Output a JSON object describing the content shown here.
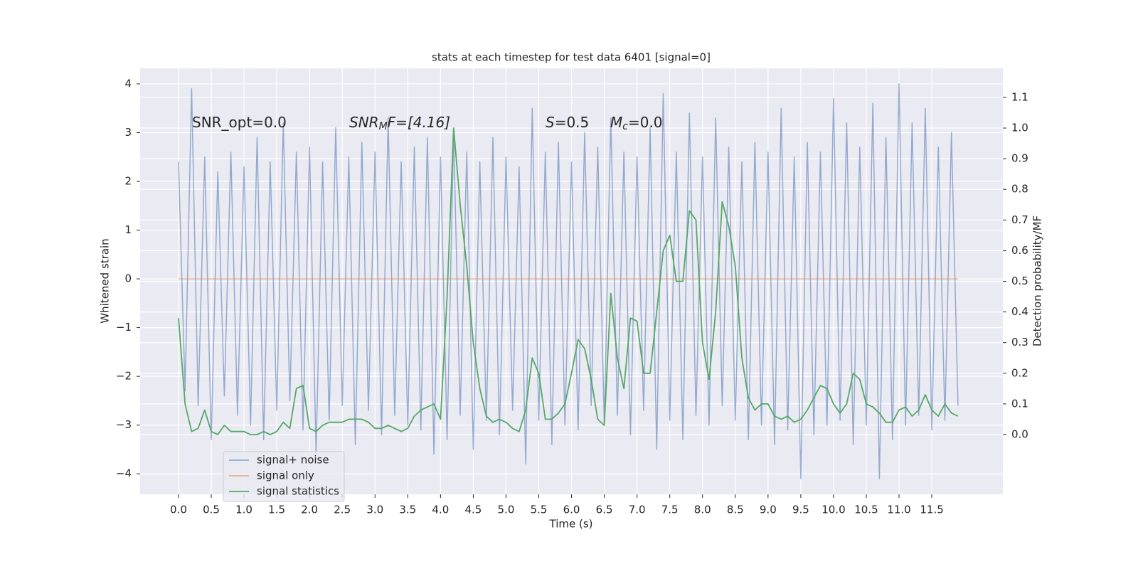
{
  "chart_data": {
    "type": "line",
    "title": "stats at each timestep for test data 6401 [signal=0]",
    "xlabel": "Time (s)",
    "ylabel": "Whitened strain",
    "y2label": "Detection probability/MF",
    "annotations": [
      [
        "SNR_opt=0.0"
      ],
      [
        "SNR",
        "M",
        "F=[4.16]"
      ],
      [
        "S",
        "=0.5"
      ],
      [
        "M",
        "c",
        "=0.0"
      ]
    ],
    "x": [
      0,
      0.1,
      0.2,
      0.3,
      0.4,
      0.5,
      0.6,
      0.7,
      0.8,
      0.9,
      1,
      1.1,
      1.2,
      1.3,
      1.4,
      1.5,
      1.6,
      1.7,
      1.8,
      1.9,
      2,
      2.1,
      2.2,
      2.3,
      2.4,
      2.5,
      2.6,
      2.7,
      2.8,
      2.9,
      3,
      3.1,
      3.2,
      3.3,
      3.4,
      3.5,
      3.6,
      3.7,
      3.8,
      3.9,
      4,
      4.1,
      4.2,
      4.3,
      4.4,
      4.5,
      4.6,
      4.7,
      4.8,
      4.9,
      5,
      5.1,
      5.2,
      5.3,
      5.4,
      5.5,
      5.6,
      5.7,
      5.8,
      5.9,
      6,
      6.1,
      6.2,
      6.3,
      6.4,
      6.5,
      6.6,
      6.7,
      6.8,
      6.9,
      7,
      7.1,
      7.2,
      7.3,
      7.4,
      7.5,
      7.6,
      7.7,
      7.8,
      7.9,
      8,
      8.1,
      8.2,
      8.3,
      8.4,
      8.5,
      8.6,
      8.7,
      8.8,
      8.9,
      9,
      9.1,
      9.2,
      9.3,
      9.4,
      9.5,
      9.6,
      9.7,
      9.8,
      9.9,
      10,
      10.1,
      10.2,
      10.3,
      10.4,
      10.5,
      10.6,
      10.7,
      10.8,
      10.9,
      11,
      11.1,
      11.2,
      11.3,
      11.4,
      11.5,
      11.6,
      11.7,
      11.8,
      11.9
    ],
    "series": [
      {
        "name": "signal+ noise",
        "color": "#4c72b0",
        "values": [
          2.4,
          -2.3,
          3.9,
          -2.6,
          2.5,
          -3.3,
          2.2,
          -2.4,
          2.6,
          -2.8,
          2.3,
          -3.0,
          2.9,
          -3.3,
          2.4,
          -2.7,
          3.2,
          -2.5,
          2.6,
          -3.1,
          2.7,
          -3.6,
          2.4,
          -2.9,
          3.1,
          -2.6,
          2.5,
          -3.4,
          2.8,
          -2.7,
          2.6,
          -3.2,
          3.3,
          -2.8,
          2.4,
          -3.0,
          2.7,
          -3.1,
          2.9,
          -3.6,
          2.5,
          -3.3,
          3.0,
          -2.8,
          2.6,
          -3.5,
          2.4,
          -2.9,
          2.9,
          -3.2,
          2.5,
          -2.7,
          2.3,
          -3.8,
          3.5,
          -2.9,
          2.6,
          -3.4,
          2.8,
          -3.0,
          2.4,
          -3.1,
          3.0,
          -2.6,
          2.7,
          -3.0,
          3.3,
          -2.8,
          2.6,
          -3.2,
          2.5,
          -2.7,
          3.1,
          -3.5,
          3.8,
          -2.9,
          2.6,
          -3.3,
          3.4,
          -2.8,
          2.5,
          -3.0,
          3.3,
          -2.6,
          2.7,
          -2.9,
          2.4,
          -3.3,
          2.8,
          -3.0,
          2.6,
          -3.4,
          3.5,
          -3.1,
          2.5,
          -4.1,
          2.8,
          -3.2,
          2.6,
          -3.0,
          3.7,
          -2.9,
          3.2,
          -3.4,
          2.7,
          -3.0,
          3.6,
          -4.1,
          2.9,
          -3.3,
          4.0,
          -3.0,
          3.2,
          -2.8,
          3.5,
          -3.1,
          2.7,
          -2.9,
          3.0,
          -2.6
        ]
      },
      {
        "name": "signal only",
        "color": "#dd8452",
        "values": [
          0,
          0,
          0,
          0,
          0,
          0,
          0,
          0,
          0,
          0,
          0,
          0,
          0,
          0,
          0,
          0,
          0,
          0,
          0,
          0,
          0,
          0,
          0,
          0,
          0,
          0,
          0,
          0,
          0,
          0,
          0,
          0,
          0,
          0,
          0,
          0,
          0,
          0,
          0,
          0,
          0,
          0,
          0,
          0,
          0,
          0,
          0,
          0,
          0,
          0,
          0,
          0,
          0,
          0,
          0,
          0,
          0,
          0,
          0,
          0,
          0,
          0,
          0,
          0,
          0,
          0,
          0,
          0,
          0,
          0,
          0,
          0,
          0,
          0,
          0,
          0,
          0,
          0,
          0,
          0,
          0,
          0,
          0,
          0,
          0,
          0,
          0,
          0,
          0,
          0,
          0,
          0,
          0,
          0,
          0,
          0,
          0,
          0,
          0,
          0,
          0,
          0,
          0,
          0,
          0,
          0,
          0,
          0,
          0,
          0,
          0,
          0,
          0,
          0,
          0,
          0,
          0,
          0,
          0,
          0
        ]
      },
      {
        "name": "signal statistics",
        "color": "#55a868",
        "axis": "y2",
        "values": [
          0.38,
          0.1,
          0.01,
          0.02,
          0.08,
          0.01,
          0,
          0.03,
          0.01,
          0.01,
          0.01,
          0,
          0,
          0.01,
          0,
          0.01,
          0.04,
          0.02,
          0.15,
          0.16,
          0.02,
          0.01,
          0.03,
          0.04,
          0.04,
          0.04,
          0.05,
          0.05,
          0.05,
          0.04,
          0.02,
          0.02,
          0.03,
          0.02,
          0.01,
          0.02,
          0.06,
          0.08,
          0.09,
          0.1,
          0.05,
          0.45,
          1.0,
          0.75,
          0.55,
          0.3,
          0.15,
          0.06,
          0.04,
          0.05,
          0.04,
          0.02,
          0.01,
          0.08,
          0.25,
          0.2,
          0.05,
          0.05,
          0.07,
          0.1,
          0.2,
          0.31,
          0.28,
          0.18,
          0.05,
          0.03,
          0.46,
          0.25,
          0.15,
          0.38,
          0.37,
          0.2,
          0.2,
          0.4,
          0.6,
          0.65,
          0.5,
          0.5,
          0.73,
          0.7,
          0.3,
          0.18,
          0.4,
          0.76,
          0.68,
          0.55,
          0.25,
          0.12,
          0.08,
          0.1,
          0.1,
          0.06,
          0.05,
          0.06,
          0.04,
          0.05,
          0.08,
          0.12,
          0.16,
          0.15,
          0.1,
          0.07,
          0.1,
          0.2,
          0.18,
          0.1,
          0.09,
          0.07,
          0.04,
          0.04,
          0.08,
          0.09,
          0.06,
          0.08,
          0.13,
          0.08,
          0.06,
          0.1,
          0.07,
          0.06
        ]
      }
    ],
    "xlim": [
      -0.586,
      12.585
    ],
    "xticks": [
      {
        "value": 0,
        "label": "0.0"
      },
      0.5,
      {
        "value": 1,
        "label": "1.0"
      },
      1.5,
      {
        "value": 2,
        "label": "2.0"
      },
      2.5,
      {
        "value": 3,
        "label": "3.0"
      },
      3.5,
      {
        "value": 4,
        "label": "4.0"
      },
      4.5,
      {
        "value": 5,
        "label": "5.0"
      },
      5.5,
      {
        "value": 6,
        "label": "6.0"
      },
      6.5,
      {
        "value": 7,
        "label": "7.0"
      },
      7.5,
      {
        "value": 8,
        "label": "8.0"
      },
      8.5,
      {
        "value": 9,
        "label": "9.0"
      },
      9.5,
      {
        "value": 10,
        "label": "10.0"
      },
      10.5,
      {
        "value": 11,
        "label": "11.0"
      },
      11.5
    ],
    "ylim": [
      -4.42,
      4.32
    ],
    "yticks": [
      {
        "value": -4,
        "label": "−4"
      },
      {
        "value": -3,
        "label": "−3"
      },
      {
        "value": -2,
        "label": "−2"
      },
      {
        "value": -1,
        "label": "−1"
      },
      0,
      1,
      2,
      3,
      4
    ],
    "y2lim": [
      -0.195,
      1.195
    ],
    "y2ticks": [
      {
        "value": 0,
        "label": "0.0"
      },
      0.1,
      0.2,
      0.3,
      0.4,
      0.5,
      0.6,
      0.7,
      0.8,
      0.9,
      {
        "value": 1,
        "label": "1.0"
      },
      1.1
    ],
    "grid": true,
    "legend": "lower left"
  }
}
